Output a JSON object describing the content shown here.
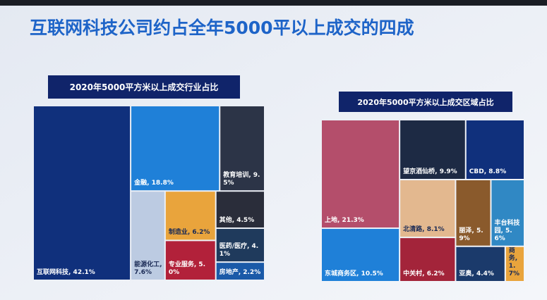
{
  "title": "互联网科技公司约占全年5000平以上成交的四成",
  "chart_data": [
    {
      "type": "treemap",
      "title": "2020年5000平方米以上成交行业占比",
      "categories": [
        "互联网科技",
        "金融",
        "教育培训",
        "能源化工",
        "制造业",
        "专业服务",
        "其他",
        "医药/医疗",
        "房地产"
      ],
      "values": [
        42.1,
        18.8,
        9.5,
        7.6,
        6.2,
        5.0,
        4.5,
        4.1,
        2.2
      ],
      "value_labels": [
        "互联网科技, 42.1%",
        "金融, 18.8%",
        "教育培训, 9.5%",
        "能源化工, 7.6%",
        "制造业, 6.2%",
        "专业服务, 5.0%",
        "其他, 4.5%",
        "医药/医疗, 4.1%",
        "房地产, 2.2%"
      ],
      "colors": [
        "#10307c",
        "#1f80d8",
        "#2c3447",
        "#bccbe2",
        "#e9a43c",
        "#b2213a",
        "#2a2d3a",
        "#1f3a5c",
        "#1b5aa8"
      ]
    },
    {
      "type": "treemap",
      "title": "2020年5000平方米以上成交区域占比",
      "categories": [
        "上地",
        "东城商务区",
        "望京酒仙桥",
        "CBD",
        "北清路",
        "中关村",
        "丽泽",
        "丰台科技园",
        "亚奥",
        "商务"
      ],
      "values": [
        21.3,
        10.5,
        9.9,
        8.8,
        8.1,
        6.2,
        5.9,
        5.6,
        4.4,
        1.7
      ],
      "value_labels": [
        "上地, 21.3%",
        "东城商务区, 10.5%",
        "望京酒仙桥, 9.9%",
        "CBD, 8.8%",
        "北清路, 8.1%",
        "中关村, 6.2%",
        "丽泽, 5.9%",
        "丰台科技园, 5.6%",
        "亚奥, 4.4%",
        "商务, 1.7%"
      ],
      "colors": [
        "#b44e6b",
        "#1f80d8",
        "#1d2a44",
        "#10307c",
        "#e3b88f",
        "#a3243a",
        "#8a5a2c",
        "#3088c4",
        "#1b3a6b",
        "#e9a43c"
      ]
    }
  ]
}
